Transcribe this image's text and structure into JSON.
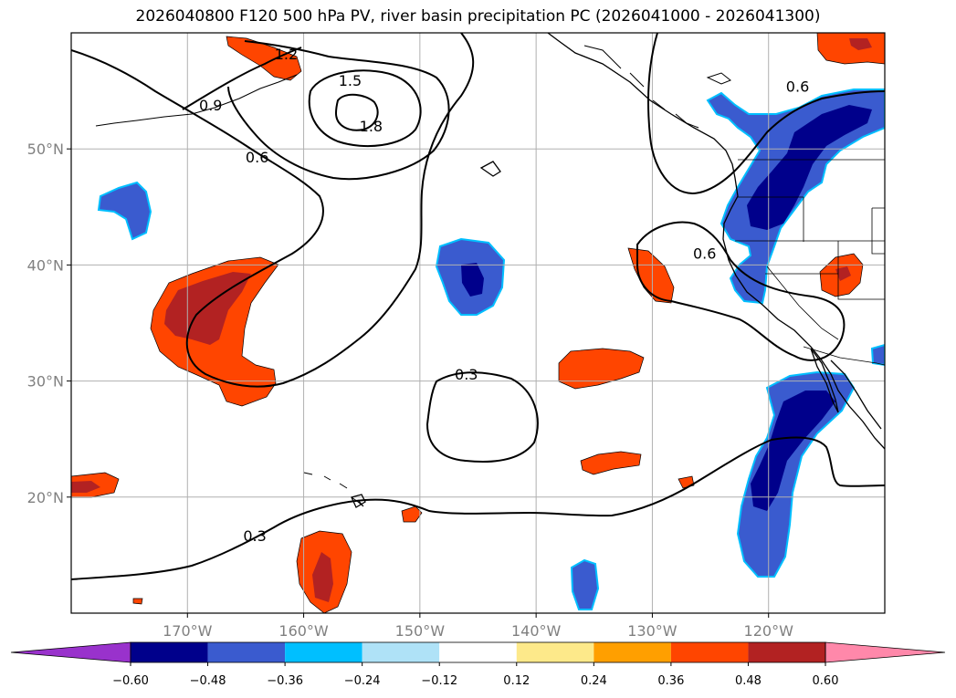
{
  "title": "2026040800 F120 500 hPa PV, river basin precipitation PC (2026041000 - 2026041300)",
  "map": {
    "projection": "PlateCarree",
    "lon_range": [
      -180,
      -110
    ],
    "lat_range": [
      10,
      60
    ],
    "lon_ticks": [
      {
        "value": -170,
        "label": "170°W"
      },
      {
        "value": -160,
        "label": "160°W"
      },
      {
        "value": -150,
        "label": "150°W"
      },
      {
        "value": -140,
        "label": "140°W"
      },
      {
        "value": -130,
        "label": "130°W"
      },
      {
        "value": -120,
        "label": "120°W"
      }
    ],
    "lat_ticks": [
      {
        "value": 50,
        "label": "50°N"
      },
      {
        "value": 40,
        "label": "40°N"
      },
      {
        "value": 30,
        "label": "30°N"
      },
      {
        "value": 20,
        "label": "20°N"
      }
    ],
    "gridlines": true,
    "colors": {
      "grid": "#b0b0b0",
      "contour": "#000000",
      "coast": "#000000"
    },
    "pv_contour_labels": [
      {
        "text": "1.2",
        "lon": -161.5,
        "lat": 58.2
      },
      {
        "text": "1.5",
        "lon": -156.0,
        "lat": 55.9
      },
      {
        "text": "1.8",
        "lon": -154.2,
        "lat": 52.0
      },
      {
        "text": "0.9",
        "lon": -168.0,
        "lat": 53.8
      },
      {
        "text": "0.6",
        "lon": -164.0,
        "lat": 49.3
      },
      {
        "text": "0.6",
        "lon": -117.5,
        "lat": 55.4
      },
      {
        "text": "0.6",
        "lon": -125.5,
        "lat": 41.0
      },
      {
        "text": "0.3",
        "lon": -146.0,
        "lat": 30.6
      },
      {
        "text": "0.3",
        "lon": -164.2,
        "lat": 16.7
      }
    ]
  },
  "colorbar": {
    "levels": [
      "−0.60",
      "−0.48",
      "−0.36",
      "−0.24",
      "−0.12",
      "0.12",
      "0.24",
      "0.36",
      "0.48",
      "0.60"
    ],
    "colors": [
      "#9932cc",
      "#00008b",
      "#3a5bcf",
      "#00bfff",
      "#afe2f7",
      "#ffffff",
      "#fde98a",
      "#ff9f00",
      "#ff4500",
      "#b22222",
      "#ff88aa"
    ],
    "extend": "both"
  }
}
